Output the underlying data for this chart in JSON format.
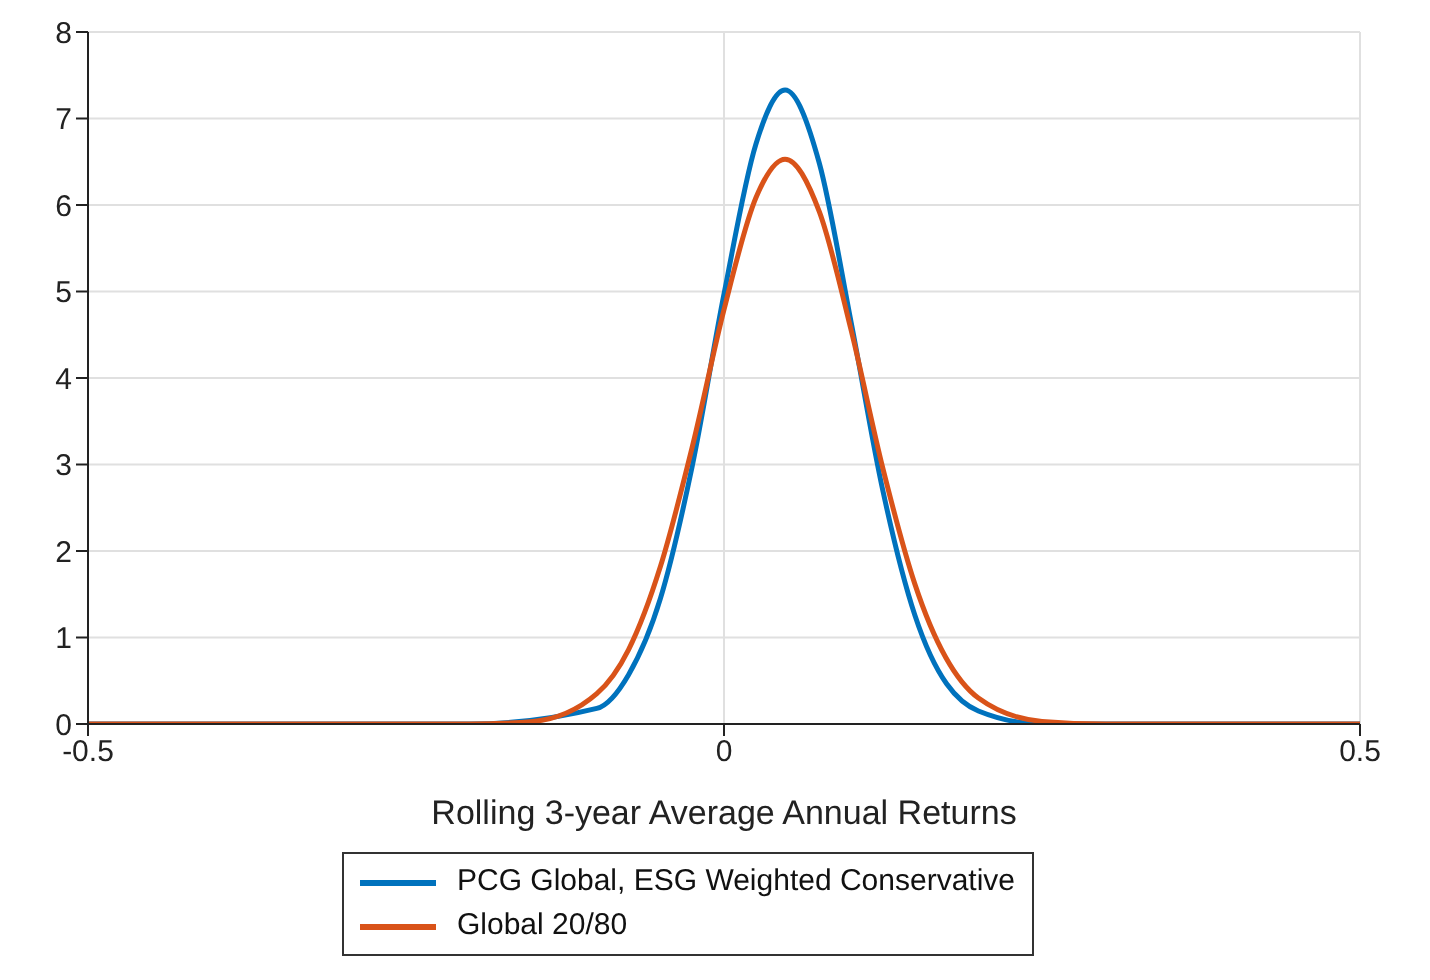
{
  "chart_data": {
    "type": "line",
    "xlabel": "Rolling 3-year Average Annual Returns",
    "x": [
      -0.5,
      -0.2,
      -0.15,
      -0.1,
      -0.075,
      -0.05,
      -0.025,
      0,
      0.025,
      0.048,
      0.075,
      0.1,
      0.125,
      0.15,
      0.2,
      0.25,
      0.3,
      0.5
    ],
    "series": [
      {
        "name": "PCG Global, ESG Weighted Conservative",
        "color": "#0072bd",
        "values": [
          0,
          0,
          null,
          0.18,
          0.57,
          1.45,
          2.98,
          4.97,
          6.7,
          7.33,
          6.48,
          4.64,
          2.69,
          1.26,
          0.15,
          0,
          0,
          0
        ]
      },
      {
        "name": "Global 20/80",
        "color": "#d95319",
        "values": [
          0,
          0,
          0.03,
          0.35,
          0.86,
          1.82,
          3.2,
          4.79,
          6.08,
          6.53,
          5.92,
          4.55,
          2.95,
          1.62,
          0.3,
          0.03,
          0,
          0
        ]
      }
    ],
    "xlim": [
      -0.5,
      0.5
    ],
    "xticks": [
      -0.5,
      0,
      0.5
    ],
    "ylim": [
      0,
      8
    ],
    "yticks": [
      0,
      1,
      2,
      3,
      4,
      5,
      6,
      7,
      8
    ],
    "grid": true,
    "legend": "bottom",
    "marker": "none",
    "line_style": "solid"
  }
}
